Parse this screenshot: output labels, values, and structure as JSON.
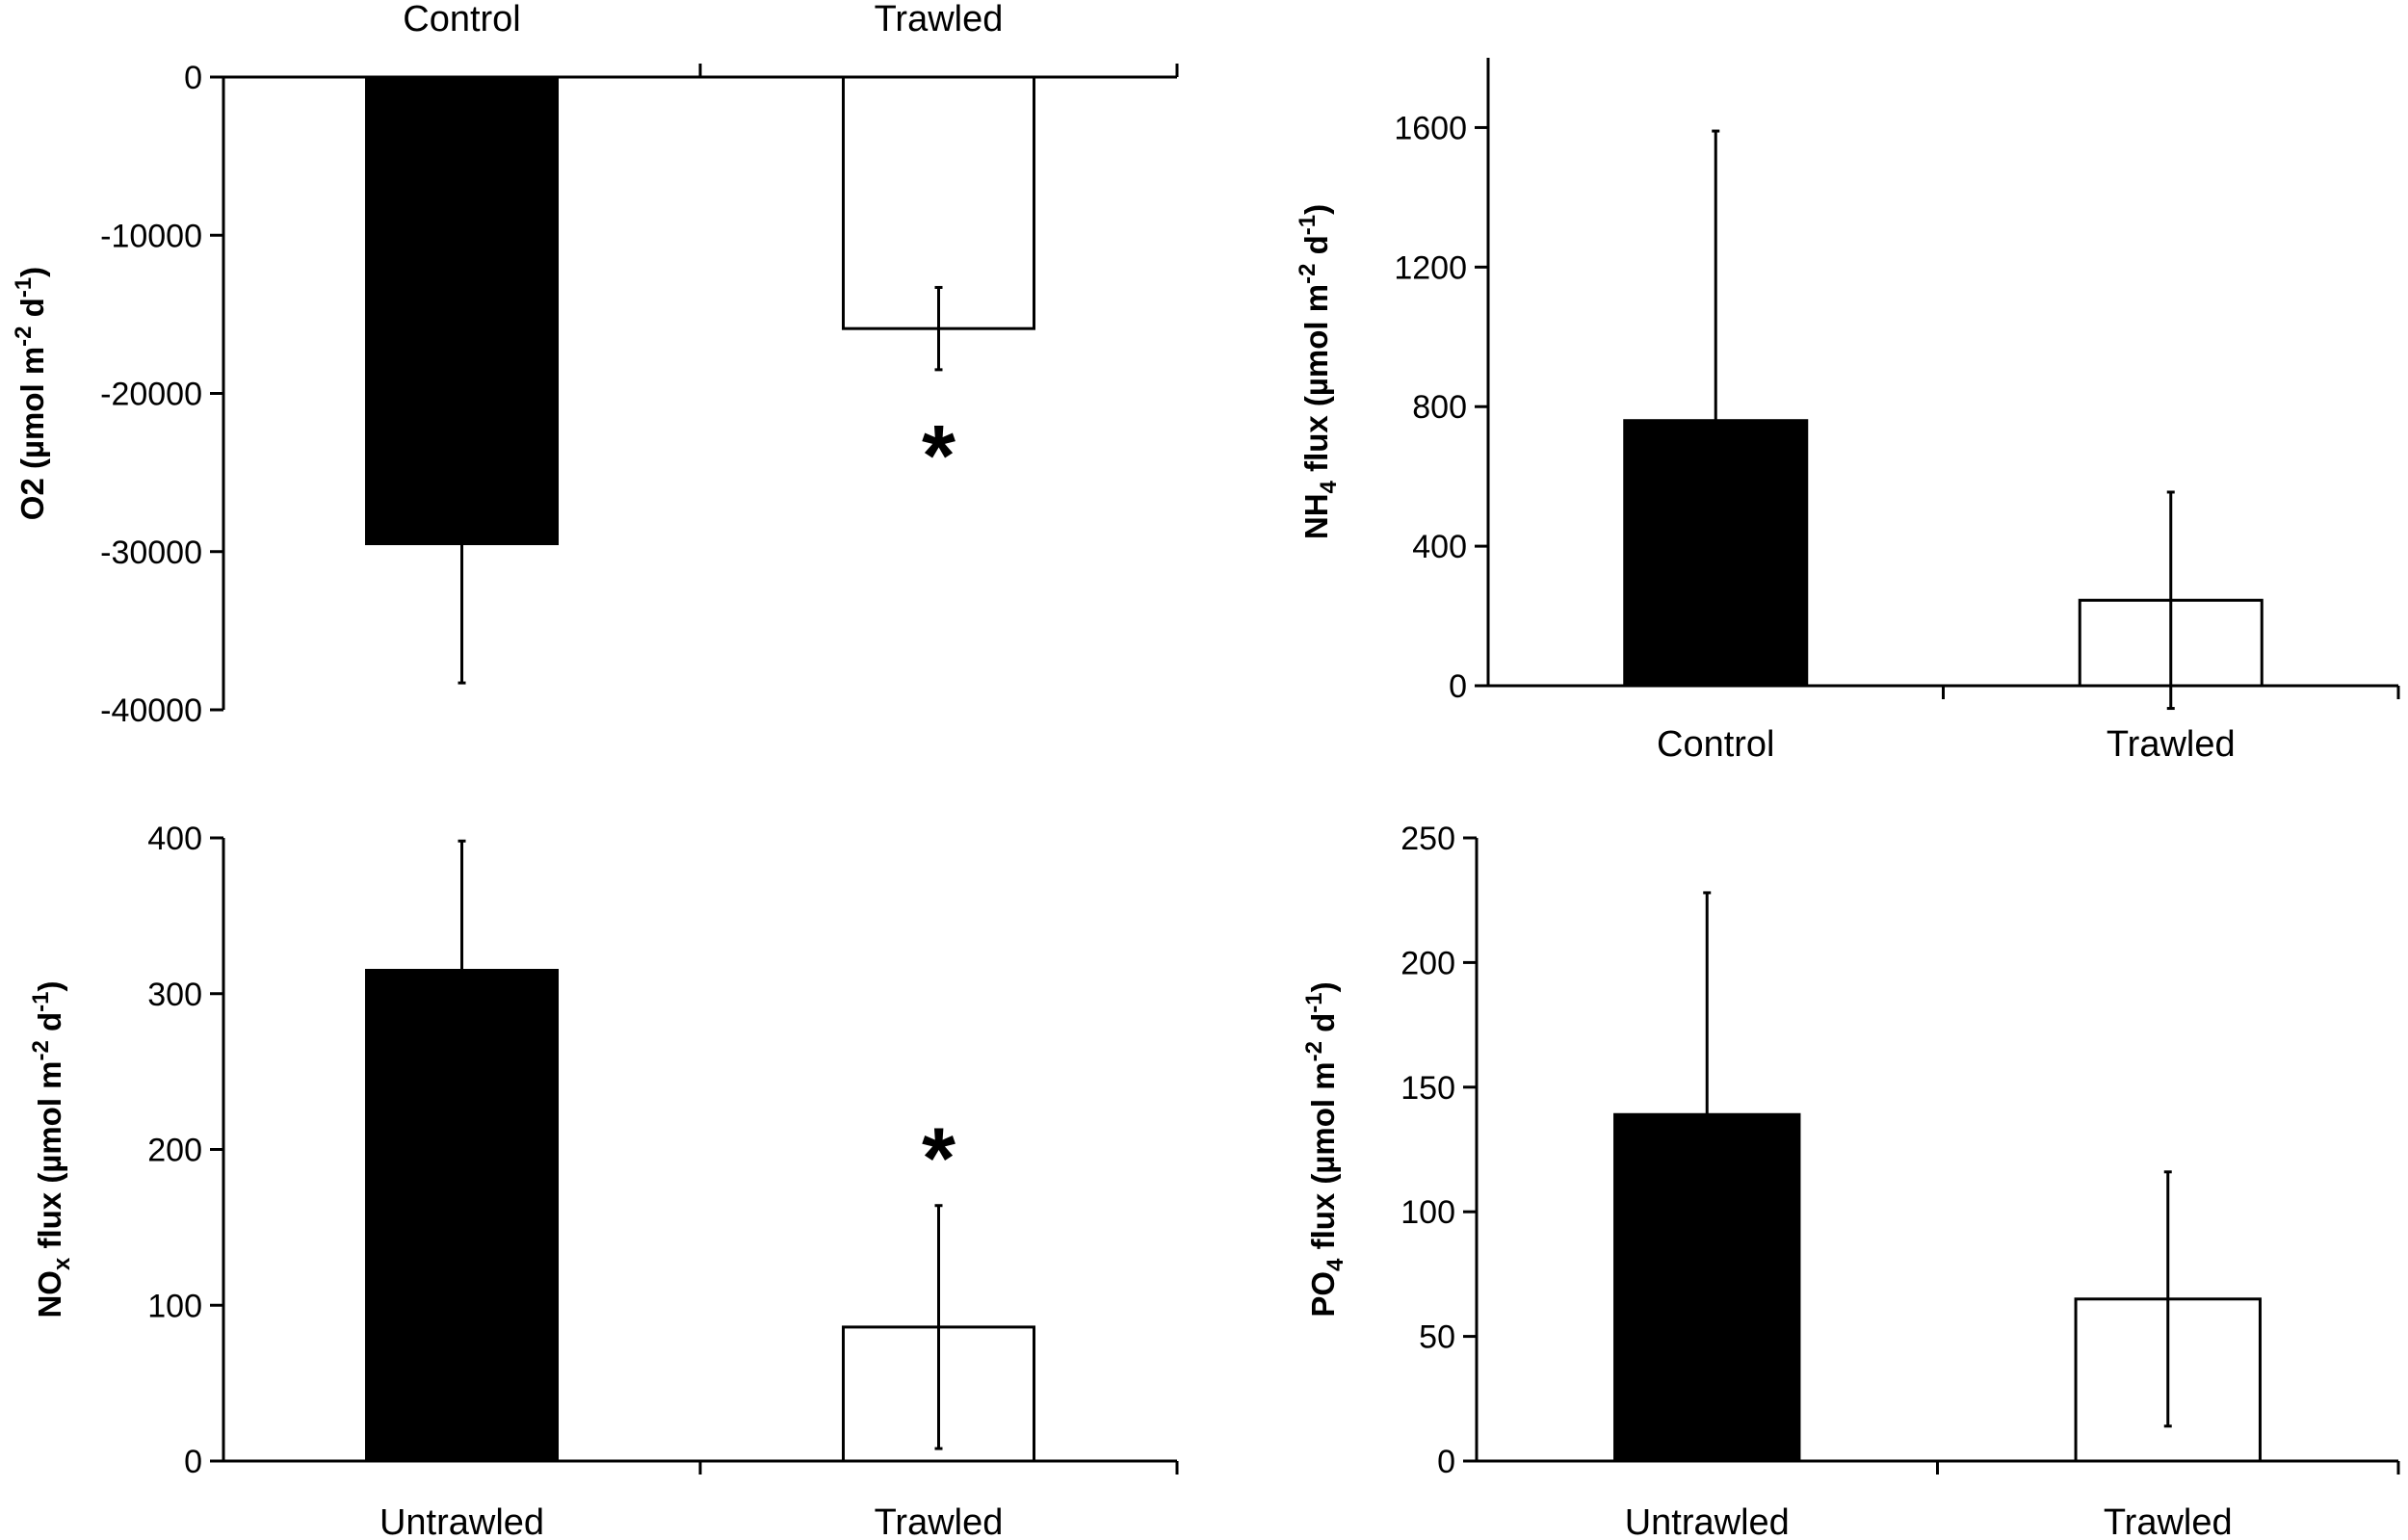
{
  "chart_data": [
    {
      "type": "bar",
      "panel": "top-left",
      "categories": [
        "Control",
        "Trawled"
      ],
      "values": [
        -29500,
        -15900
      ],
      "errors": [
        8800,
        2600
      ],
      "fills": [
        "#000000",
        "#ffffff"
      ],
      "significance": [
        "",
        "*"
      ],
      "ylabel": {
        "main": "O2 (µmol m",
        "sup1": "-2",
        "mid": " d",
        "sup2": "-1",
        "end": ")"
      },
      "yticks": [
        "0",
        "-10000",
        "-20000",
        "-30000",
        "-40000"
      ],
      "ylim": [
        -40000,
        0
      ],
      "category_position": "top"
    },
    {
      "type": "bar",
      "panel": "top-right",
      "categories": [
        "Control",
        "Trawled"
      ],
      "values": [
        760,
        245
      ],
      "errors": [
        830,
        310
      ],
      "fills": [
        "#000000",
        "#ffffff"
      ],
      "significance": [
        "",
        ""
      ],
      "ylabel": {
        "main": "NH",
        "sub": "4",
        "main2": " flux (µmol m",
        "sup1": "-2",
        "mid": " d",
        "sup2": "-1",
        "end": ")"
      },
      "yticks": [
        "0",
        "400",
        "800",
        "1200",
        "1600"
      ],
      "ylim": [
        0,
        1800
      ],
      "category_position": "bottom"
    },
    {
      "type": "bar",
      "panel": "bottom-left",
      "categories": [
        "Untrawled",
        "Trawled"
      ],
      "values": [
        315,
        86
      ],
      "errors": [
        83,
        78
      ],
      "fills": [
        "#000000",
        "#ffffff"
      ],
      "significance": [
        "",
        "*"
      ],
      "ylabel": {
        "main": "NO",
        "sub": "x",
        "main2": " flux (µmol m",
        "sup1": "-2",
        "mid": " d",
        "sup2": "-1",
        "end": ")"
      },
      "yticks": [
        "0",
        "100",
        "200",
        "300",
        "400"
      ],
      "ylim": [
        0,
        400
      ],
      "category_position": "bottom"
    },
    {
      "type": "bar",
      "panel": "bottom-right",
      "categories": [
        "Untrawled",
        "Trawled"
      ],
      "values": [
        139,
        65
      ],
      "errors": [
        89,
        51
      ],
      "fills": [
        "#000000",
        "#ffffff"
      ],
      "significance": [
        "",
        ""
      ],
      "ylabel": {
        "main": "PO",
        "sub": "4",
        "main2": " flux (µmol m",
        "sup1": "-2",
        "mid": " d",
        "sup2": "-1",
        "end": ")"
      },
      "yticks": [
        "0",
        "50",
        "100",
        "150",
        "200",
        "250"
      ],
      "ylim": [
        0,
        250
      ],
      "category_position": "bottom"
    }
  ]
}
